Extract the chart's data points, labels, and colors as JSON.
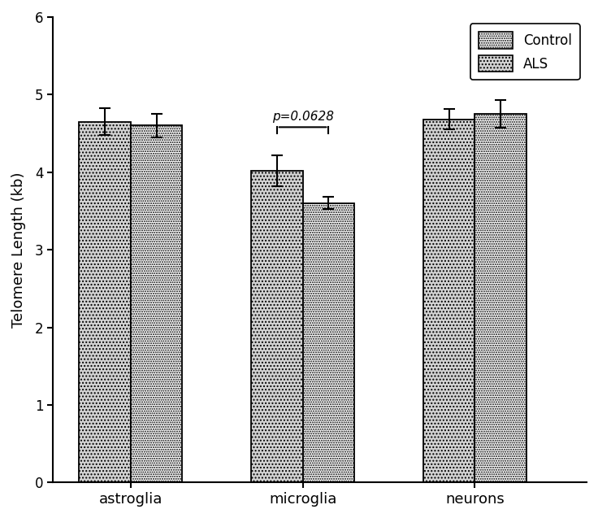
{
  "categories": [
    "astroglia",
    "microglia",
    "neurons"
  ],
  "als_values": [
    4.65,
    4.02,
    4.68
  ],
  "control_values": [
    4.6,
    3.6,
    4.75
  ],
  "als_errors": [
    0.17,
    0.2,
    0.13
  ],
  "control_errors": [
    0.15,
    0.08,
    0.18
  ],
  "ylabel": "Telomere Length (kb)",
  "ylim": [
    0,
    6
  ],
  "yticks": [
    0,
    1,
    2,
    3,
    4,
    5,
    6
  ],
  "significance_text": "p=0.0628",
  "bar_width": 0.3,
  "group_positions": [
    1,
    2,
    3
  ],
  "background_color": "#ffffff"
}
